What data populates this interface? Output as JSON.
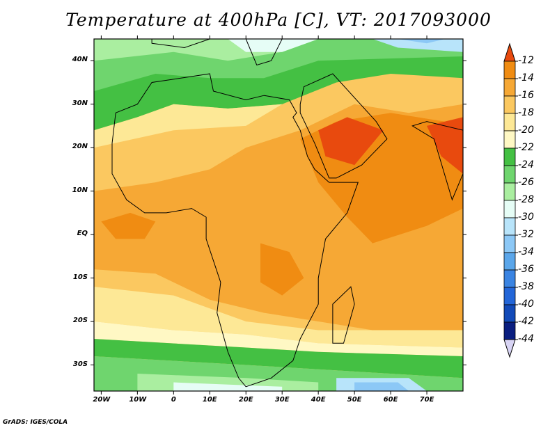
{
  "title": "Temperature at 400hPa [C], VT: 2017093000",
  "credit": "GrADS: IGES/COLA",
  "map": {
    "lon_range": [
      -22,
      80
    ],
    "lat_range": [
      -36,
      45
    ],
    "lat_ticks": [
      {
        "value": 40,
        "label": "40N"
      },
      {
        "value": 30,
        "label": "30N"
      },
      {
        "value": 20,
        "label": "20N"
      },
      {
        "value": 10,
        "label": "10N"
      },
      {
        "value": 0,
        "label": "EQ"
      },
      {
        "value": -10,
        "label": "10S"
      },
      {
        "value": -20,
        "label": "20S"
      },
      {
        "value": -30,
        "label": "30S"
      }
    ],
    "lon_ticks": [
      {
        "value": -20,
        "label": "20W"
      },
      {
        "value": -10,
        "label": "10W"
      },
      {
        "value": 0,
        "label": "0"
      },
      {
        "value": 10,
        "label": "10E"
      },
      {
        "value": 20,
        "label": "20E"
      },
      {
        "value": 30,
        "label": "30E"
      },
      {
        "value": 40,
        "label": "40E"
      },
      {
        "value": 50,
        "label": "50E"
      },
      {
        "value": 60,
        "label": "60E"
      },
      {
        "value": 70,
        "label": "70E"
      }
    ]
  },
  "colorbar": {
    "labels": [
      "-12",
      "-14",
      "-16",
      "-18",
      "-20",
      "-22",
      "-24",
      "-26",
      "-28",
      "-30",
      "-32",
      "-34",
      "-36",
      "-38",
      "-40",
      "-42",
      "-44"
    ],
    "colors": [
      "#e84a0e",
      "#f08c12",
      "#f6a835",
      "#fbc860",
      "#fde896",
      "#fff8c4",
      "#44c043",
      "#6fd56e",
      "#aaeea0",
      "#e6fdf6",
      "#b8e4fa",
      "#8cc8f6",
      "#5aa6ea",
      "#3a84e2",
      "#2366d8",
      "#124ab8",
      "#0a1e80",
      "#d8d4f4"
    ]
  }
}
